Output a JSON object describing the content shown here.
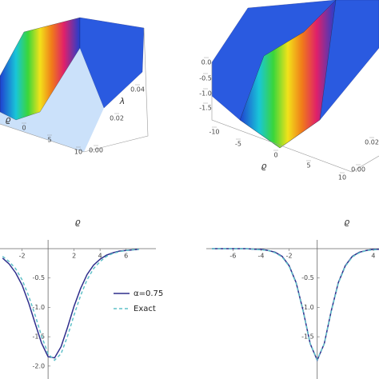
{
  "chart_data": [
    {
      "type": "surface3d",
      "x_label": "ϱ",
      "y_label": "λ",
      "xticks": [
        0,
        5,
        10
      ],
      "yticks": [
        {
          "value": 0,
          "label": "0.00"
        },
        {
          "value": 0.02,
          "label": "0.02"
        },
        {
          "value": 0.04,
          "label": "0.04"
        }
      ]
    },
    {
      "type": "surface3d",
      "x_label": "ϱ",
      "zticks": [
        {
          "value": 0,
          "label": "0.0"
        },
        -0.5,
        {
          "value": -1,
          "label": "-1.0"
        },
        -1.5
      ],
      "xticks": [
        -10,
        -5,
        0,
        5,
        10
      ],
      "yticks": [
        {
          "value": 0,
          "label": "0.00"
        },
        {
          "value": 0.02,
          "label": "0.02"
        }
      ]
    },
    {
      "type": "line",
      "x_label": "ϱ",
      "xlim": [
        -3.7,
        8.3
      ],
      "ylim": [
        -2.22,
        0.15
      ],
      "xticks": [
        -2,
        2,
        4,
        6
      ],
      "yticks": [
        -0.5,
        {
          "value": -1,
          "label": "-1.0"
        },
        -1.5,
        {
          "value": -2,
          "label": "-2.0"
        }
      ],
      "legend": true,
      "x": [
        -3.5,
        -3,
        -2.5,
        -2,
        -1.5,
        -1,
        -0.5,
        0,
        0.5,
        1,
        1.5,
        2,
        2.5,
        3,
        3.5,
        4,
        4.5,
        5,
        5.5,
        6,
        6.5,
        7
      ],
      "series": [
        {
          "name": "α=0.75",
          "color": "#2e2e8c",
          "line_style": "solid",
          "values": [
            -0.16,
            -0.26,
            -0.41,
            -0.62,
            -0.92,
            -1.27,
            -1.61,
            -1.84,
            -1.86,
            -1.67,
            -1.34,
            -0.98,
            -0.68,
            -0.44,
            -0.28,
            -0.18,
            -0.11,
            -0.07,
            -0.04,
            -0.03,
            -0.02,
            -0.01
          ]
        },
        {
          "name": "Exact",
          "color": "#5fc0c8",
          "line_style": "dashed",
          "values": [
            -0.13,
            -0.22,
            -0.34,
            -0.53,
            -0.8,
            -1.13,
            -1.49,
            -1.79,
            -1.9,
            -1.79,
            -1.49,
            -1.13,
            -0.8,
            -0.53,
            -0.34,
            -0.22,
            -0.13,
            -0.08,
            -0.05,
            -0.03,
            -0.02,
            -0.01
          ]
        }
      ]
    },
    {
      "type": "line",
      "x_label": "ϱ",
      "xlim": [
        -7.9,
        4.4
      ],
      "ylim": [
        -2.22,
        0.15
      ],
      "xticks": [
        -6,
        -4,
        -2,
        4
      ],
      "yticks": [
        -0.5,
        {
          "value": -1,
          "label": "-1.0"
        },
        -1.5
      ],
      "legend": false,
      "x": [
        -7.5,
        -7,
        -6.5,
        -6,
        -5.5,
        -5,
        -4.5,
        -4,
        -3.5,
        -3,
        -2.5,
        -2,
        -1.5,
        -1,
        -0.5,
        0,
        0.5,
        1,
        1.5,
        2,
        2.5,
        3,
        3.5,
        4,
        4.5
      ],
      "series": [
        {
          "color": "#2e2e8c",
          "line_style": "solid",
          "values": [
            0,
            0,
            0,
            0,
            0,
            0,
            -0.01,
            -0.01,
            -0.03,
            -0.06,
            -0.13,
            -0.29,
            -0.58,
            -1.06,
            -1.62,
            -1.9,
            -1.62,
            -1.06,
            -0.58,
            -0.29,
            -0.13,
            -0.06,
            -0.03,
            -0.01,
            -0.01
          ]
        },
        {
          "color": "#5fc0c8",
          "line_style": "dashed",
          "values": [
            0,
            0,
            0,
            0,
            0,
            0,
            -0.01,
            -0.02,
            -0.03,
            -0.07,
            -0.14,
            -0.3,
            -0.59,
            -1.07,
            -1.62,
            -1.89,
            -1.62,
            -1.07,
            -0.59,
            -0.3,
            -0.14,
            -0.07,
            -0.03,
            -0.02,
            -0.01
          ]
        }
      ]
    }
  ]
}
